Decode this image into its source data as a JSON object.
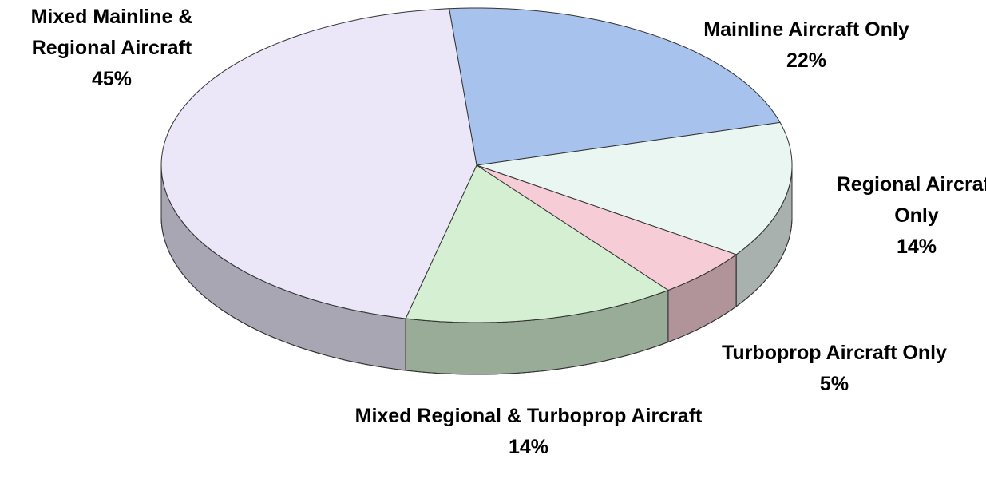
{
  "chart_data": {
    "type": "pie3d",
    "categories": [
      "Mainline Aircraft Only",
      "Regional Aircraft Only",
      "Turboprop Aircraft Only",
      "Mixed Regional & Turboprop Aircraft",
      "Mixed Mainline & Regional Aircraft"
    ],
    "values": [
      22,
      14,
      5,
      14,
      45
    ],
    "value_labels": [
      "22%",
      "14%",
      "5%",
      "14%",
      "45%"
    ],
    "colors": [
      "#a8c2ee",
      "#eaf6f2",
      "#f6cdd6",
      "#d4efd2",
      "#ebe7f8"
    ]
  }
}
